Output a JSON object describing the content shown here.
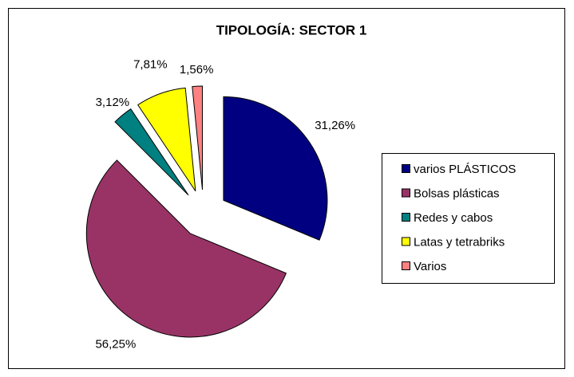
{
  "chart_data": {
    "type": "pie",
    "title": "TIPOLOGÍA: SECTOR 1",
    "categories": [
      "varios PLÁSTICOS",
      "Bolsas plásticas",
      "Redes y cabos",
      "Latas y tetrabriks",
      "Varios"
    ],
    "values": [
      31.26,
      56.25,
      3.12,
      7.81,
      1.56
    ],
    "value_labels": [
      "31,26%",
      "56,25%",
      "3,12%",
      "7,81%",
      "1,56%"
    ],
    "colors": [
      "#000080",
      "#993366",
      "#008080",
      "#ffff00",
      "#ff8080"
    ],
    "exploded": true,
    "legend": "right"
  }
}
